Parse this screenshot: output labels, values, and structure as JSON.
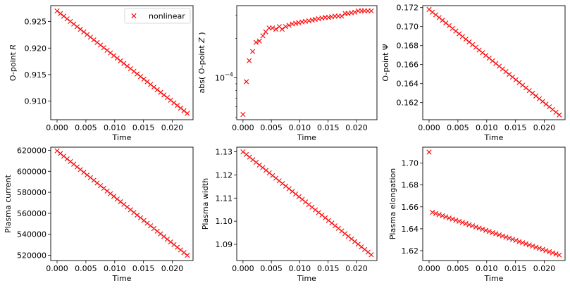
{
  "chart_data": [
    {
      "type": "scatter",
      "xlabel": "Time",
      "ylabel": "O-point R",
      "ylabel_italic": "R",
      "xlim": [
        -0.0011,
        0.0236
      ],
      "ylim": [
        0.9065,
        0.928
      ],
      "xticks": [
        0.0,
        0.005,
        0.01,
        0.015,
        0.02
      ],
      "xtick_labels": [
        "0.000",
        "0.005",
        "0.010",
        "0.015",
        "0.020"
      ],
      "yticks": [
        0.91,
        0.915,
        0.92,
        0.925
      ],
      "ytick_labels": [
        "0.910",
        "0.915",
        "0.920",
        "0.925"
      ],
      "legend": {
        "label": "nonlinear",
        "placement": "upper right"
      },
      "series": [
        {
          "name": "nonlinear",
          "marker": "x",
          "color": "#ff0000",
          "x_start": 0.0,
          "x_end": 0.0226,
          "n": 40,
          "y_start": 0.927,
          "y_end": 0.9077,
          "y_shape": "linear"
        }
      ]
    },
    {
      "type": "scatter",
      "xlabel": "Time",
      "ylabel": "abs( O-point Z )",
      "ylabel_italic": "Z",
      "yscale": "log",
      "xlim": [
        -0.0011,
        0.0236
      ],
      "ylim_log10": [
        -4.32,
        -3.45
      ],
      "xticks": [
        0.0,
        0.005,
        0.01,
        0.015,
        0.02
      ],
      "xtick_labels": [
        "0.000",
        "0.005",
        "0.010",
        "0.015",
        "0.020"
      ],
      "yticks_log10": [
        -4
      ],
      "ytick_labels": [
        "10",
        "−4"
      ],
      "series": [
        {
          "name": "",
          "marker": "x",
          "color": "#ff0000",
          "x": [
            0.0,
            0.0006,
            0.0011,
            0.0017,
            0.0023,
            0.0029,
            0.0035,
            0.004,
            0.0046,
            0.0052,
            0.0058,
            0.0064,
            0.0069,
            0.0075,
            0.0081,
            0.0087,
            0.0093,
            0.0098,
            0.0104,
            0.011,
            0.0116,
            0.0122,
            0.0127,
            0.0133,
            0.0139,
            0.0145,
            0.0151,
            0.0156,
            0.0162,
            0.0168,
            0.0174,
            0.018,
            0.0185,
            0.0191,
            0.0197,
            0.0203,
            0.0209,
            0.0214,
            0.022,
            0.0226
          ],
          "log10_y": [
            -4.28,
            -4.03,
            -3.87,
            -3.8,
            -3.73,
            -3.72,
            -3.68,
            -3.65,
            -3.62,
            -3.62,
            -3.63,
            -3.61,
            -3.63,
            -3.61,
            -3.6,
            -3.59,
            -3.585,
            -3.58,
            -3.575,
            -3.57,
            -3.565,
            -3.56,
            -3.555,
            -3.55,
            -3.545,
            -3.54,
            -3.54,
            -3.535,
            -3.53,
            -3.53,
            -3.53,
            -3.51,
            -3.51,
            -3.505,
            -3.5,
            -3.49,
            -3.49,
            -3.49,
            -3.49,
            -3.49
          ]
        }
      ]
    },
    {
      "type": "scatter",
      "xlabel": "Time",
      "ylabel": "O-point Ψ",
      "xlim": [
        -0.0011,
        0.0236
      ],
      "ylim": [
        0.1602,
        0.1722
      ],
      "xticks": [
        0.0,
        0.005,
        0.01,
        0.015,
        0.02
      ],
      "xtick_labels": [
        "0.000",
        "0.005",
        "0.010",
        "0.015",
        "0.020"
      ],
      "yticks": [
        0.162,
        0.164,
        0.166,
        0.168,
        0.17,
        0.172
      ],
      "ytick_labels": [
        "0.162",
        "0.164",
        "0.166",
        "0.168",
        "0.170",
        "0.172"
      ],
      "series": [
        {
          "name": "",
          "marker": "x",
          "color": "#ff0000",
          "x_start": 0.0,
          "x_end": 0.0226,
          "n": 40,
          "y_start": 0.1718,
          "y_end": 0.1607,
          "y_shape": "linear"
        }
      ]
    },
    {
      "type": "scatter",
      "xlabel": "Time",
      "ylabel": "Plasma current",
      "xlim": [
        -0.0011,
        0.0236
      ],
      "ylim": [
        515000,
        623000
      ],
      "xticks": [
        0.0,
        0.005,
        0.01,
        0.015,
        0.02
      ],
      "xtick_labels": [
        "0.000",
        "0.005",
        "0.010",
        "0.015",
        "0.020"
      ],
      "yticks": [
        520000,
        540000,
        560000,
        580000,
        600000,
        620000
      ],
      "ytick_labels": [
        "520000",
        "540000",
        "560000",
        "580000",
        "600000",
        "620000"
      ],
      "series": [
        {
          "name": "",
          "marker": "x",
          "color": "#ff0000",
          "x_start": 0.0,
          "x_end": 0.0226,
          "n": 40,
          "y_start": 619500,
          "y_end": 520000,
          "y_shape": "linear"
        }
      ]
    },
    {
      "type": "scatter",
      "xlabel": "Time",
      "ylabel": "Plasma width",
      "xlim": [
        -0.0011,
        0.0236
      ],
      "ylim": [
        1.083,
        1.132
      ],
      "xticks": [
        0.0,
        0.005,
        0.01,
        0.015,
        0.02
      ],
      "xtick_labels": [
        "0.000",
        "0.005",
        "0.010",
        "0.015",
        "0.020"
      ],
      "yticks": [
        1.09,
        1.1,
        1.11,
        1.12,
        1.13
      ],
      "ytick_labels": [
        "1.09",
        "1.10",
        "1.11",
        "1.12",
        "1.13"
      ],
      "series": [
        {
          "name": "",
          "marker": "x",
          "color": "#ff0000",
          "x_start": 0.0,
          "x_end": 0.0226,
          "n": 40,
          "y_start": 1.13,
          "y_end": 1.0855,
          "y_shape": "linear"
        }
      ]
    },
    {
      "type": "scatter",
      "xlabel": "Time",
      "ylabel": "Plasma elongation",
      "xlim": [
        -0.0011,
        0.0236
      ],
      "ylim": [
        1.611,
        1.7145
      ],
      "xticks": [
        0.0,
        0.005,
        0.01,
        0.015,
        0.02
      ],
      "xtick_labels": [
        "0.000",
        "0.005",
        "0.010",
        "0.015",
        "0.020"
      ],
      "yticks": [
        1.62,
        1.64,
        1.66,
        1.68,
        1.7
      ],
      "ytick_labels": [
        "1.62",
        "1.64",
        "1.66",
        "1.68",
        "1.70"
      ],
      "series": [
        {
          "name": "",
          "marker": "x",
          "color": "#ff0000",
          "x_start": 0.0,
          "x_end": 0.0226,
          "n": 40,
          "first_point": 1.71,
          "y_start": 1.655,
          "y_end": 1.616,
          "y_shape": "linear_after_first"
        }
      ]
    }
  ]
}
